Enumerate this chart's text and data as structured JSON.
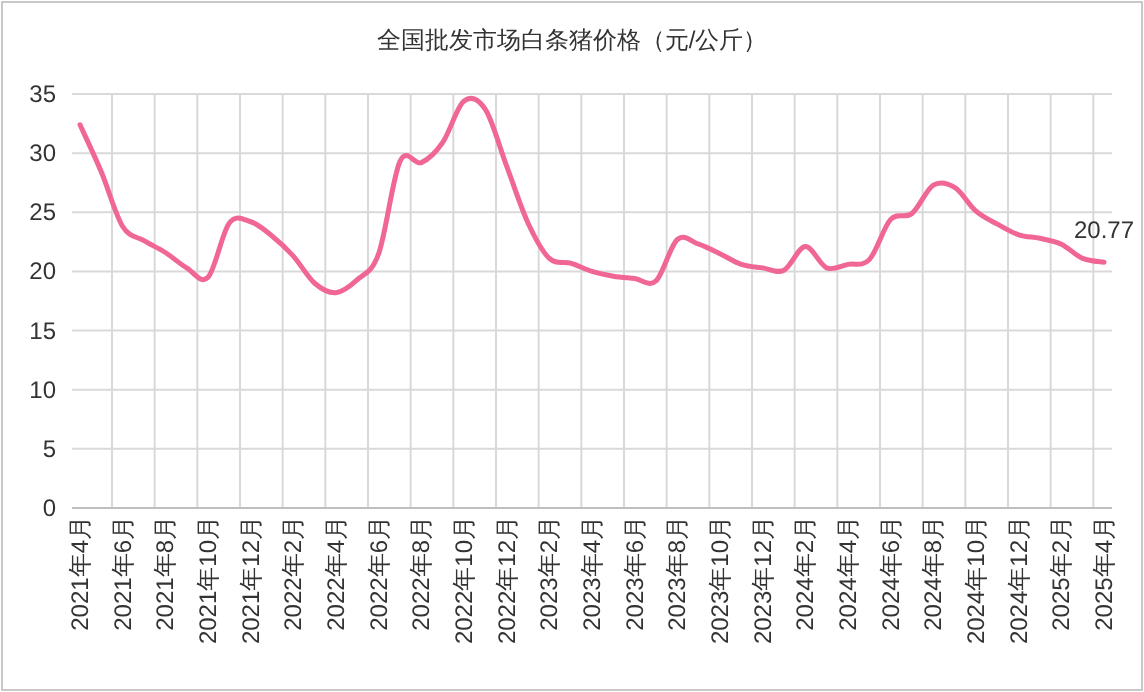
{
  "chart_data": {
    "type": "line",
    "title": "全国批发市场白条猪价格（元/公斤）",
    "categories": [
      "2021年4月",
      null,
      "2021年6月",
      null,
      "2021年8月",
      null,
      "2021年10月",
      null,
      "2021年12月",
      null,
      "2022年2月",
      null,
      "2022年4月",
      null,
      "2022年6月",
      null,
      "2022年8月",
      null,
      "2022年10月",
      null,
      "2022年12月",
      null,
      "2023年2月",
      null,
      "2023年4月",
      null,
      "2023年6月",
      null,
      "2023年8月",
      null,
      "2023年10月",
      null,
      "2023年12月",
      null,
      "2024年2月",
      null,
      "2024年4月",
      null,
      "2024年6月",
      null,
      "2024年8月",
      null,
      "2024年10月",
      null,
      "2024年12月",
      null,
      "2025年2月",
      null,
      "2025年4月"
    ],
    "series": [
      {
        "color": "#f06795",
        "values": [
          32.4,
          28.4,
          23.8,
          22.6,
          21.6,
          20.3,
          19.5,
          24.1,
          24.2,
          23.0,
          21.3,
          19.0,
          18.2,
          19.3,
          21.5,
          29.3,
          29.2,
          30.9,
          34.4,
          33.7,
          28.9,
          24.1,
          21.1,
          20.7,
          20.0,
          19.6,
          19.4,
          19.2,
          22.7,
          22.3,
          21.5,
          20.6,
          20.3,
          20.1,
          22.1,
          20.3,
          20.6,
          21.0,
          24.4,
          24.9,
          27.3,
          27.1,
          25.1,
          24.0,
          23.1,
          22.8,
          22.3,
          21.1,
          20.77
        ],
        "value_labels": [
          null,
          null,
          null,
          null,
          null,
          null,
          null,
          null,
          null,
          null,
          null,
          null,
          null,
          null,
          null,
          null,
          null,
          null,
          null,
          null,
          null,
          null,
          null,
          null,
          null,
          null,
          null,
          null,
          null,
          null,
          null,
          null,
          null,
          null,
          null,
          null,
          null,
          null,
          null,
          null,
          null,
          null,
          null,
          null,
          null,
          null,
          null,
          null,
          "20.77"
        ]
      }
    ],
    "ylim": [
      0,
      35
    ],
    "yticks": [
      0,
      5,
      10,
      15,
      20,
      25,
      30,
      35
    ],
    "grid": true,
    "marker": "none",
    "line_style": "solid"
  }
}
